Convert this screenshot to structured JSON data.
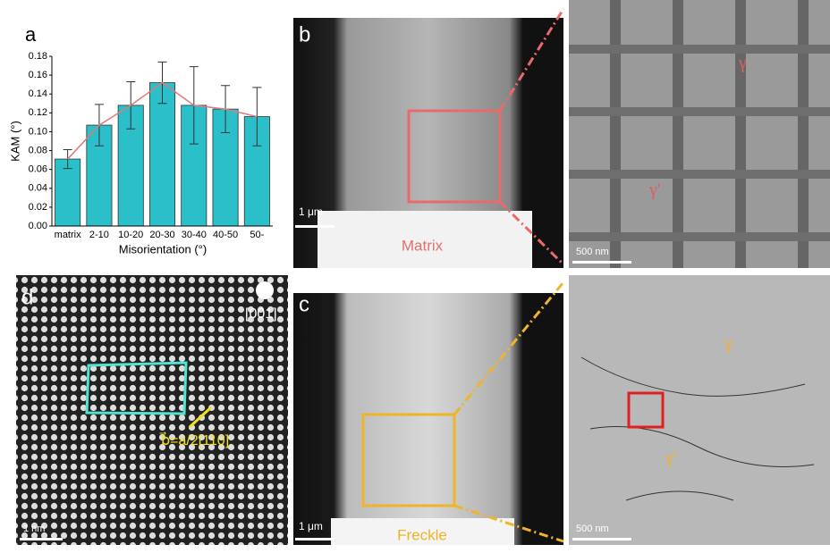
{
  "chart_data": {
    "type": "bar",
    "panel": "a",
    "xlabel": "Misorientation (°)",
    "ylabel": "KAM (°)",
    "categories": [
      "matrix",
      "2-10",
      "10-20",
      "20-30",
      "30-40",
      "40-50",
      "50-"
    ],
    "values": [
      0.071,
      0.107,
      0.128,
      0.152,
      0.128,
      0.124,
      0.116
    ],
    "errors": [
      0.01,
      0.022,
      0.025,
      0.022,
      0.041,
      0.025,
      0.031
    ],
    "color": "#2bbfca",
    "line_color": "#e07a7a",
    "ylim": [
      0,
      0.18
    ],
    "yticks": [
      {
        "value": 0,
        "label": "0.00"
      },
      {
        "value": 0.02,
        "label": "0.02"
      },
      {
        "value": 0.04,
        "label": "0.04"
      },
      {
        "value": 0.06,
        "label": "0.06"
      },
      {
        "value": 0.08,
        "label": "0.08"
      },
      {
        "value": 0.1,
        "label": "0.10"
      },
      {
        "value": 0.12,
        "label": "0.12"
      },
      {
        "value": 0.14,
        "label": "0.14"
      },
      {
        "value": 0.16,
        "label": "0.16"
      },
      {
        "value": 0.18,
        "label": "0.18"
      }
    ]
  },
  "panels": {
    "b": {
      "label": "b",
      "scale": "1 μm",
      "region": "Matrix"
    },
    "b_zoom": {
      "gamma": "γ",
      "gamma_prime": "γ′",
      "scale": "500 nm"
    },
    "d": {
      "label": "d",
      "zone": "[001]",
      "burgers": "b⃗=a/2[110]",
      "scale": "1 nm"
    },
    "c": {
      "label": "c",
      "scale": "1 μm",
      "region": "Freckle"
    },
    "c_zoom": {
      "gamma": "γ",
      "gamma_prime": "γ′",
      "scale": "500 nm"
    }
  }
}
